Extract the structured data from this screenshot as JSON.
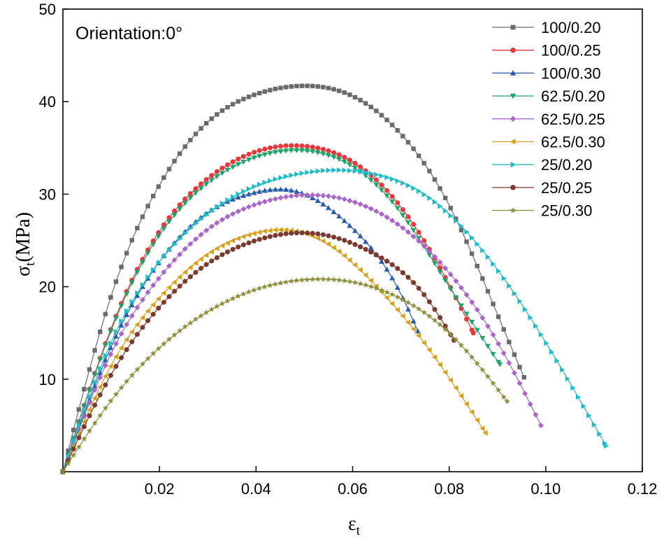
{
  "chart_data": {
    "type": "line",
    "annotation": "Orientation:0°",
    "xlabel": "ε",
    "xlabel_sub": "t",
    "ylabel_prefix": "σ",
    "ylabel_sub": "t",
    "ylabel_suffix": "(MPa)",
    "xlim": [
      0,
      0.12
    ],
    "ylim": [
      0,
      50
    ],
    "xticks": [
      0.02,
      0.04,
      0.06,
      0.08,
      0.1,
      0.12
    ],
    "xtick_labels": [
      "0.02",
      "0.04",
      "0.06",
      "0.08",
      "0.10",
      "0.12"
    ],
    "yticks": [
      10,
      20,
      30,
      40,
      50
    ],
    "ytick_labels": [
      "10",
      "20",
      "30",
      "40",
      "50"
    ],
    "legend_position": "top-right",
    "series": [
      {
        "name": "100/0.20",
        "color": "#6a6a6a",
        "marker": "square",
        "x": [
          0,
          0.01,
          0.02,
          0.03,
          0.04,
          0.051,
          0.06,
          0.07,
          0.08,
          0.09,
          0.0955
        ],
        "y": [
          0,
          19.0,
          31.0,
          37.8,
          40.8,
          41.7,
          40.6,
          36.5,
          28.8,
          17.0,
          10.2
        ]
      },
      {
        "name": "100/0.25",
        "color": "#e8383b",
        "marker": "circle",
        "x": [
          0,
          0.01,
          0.02,
          0.03,
          0.04,
          0.05,
          0.06,
          0.07,
          0.08,
          0.085
        ],
        "y": [
          0,
          15.5,
          26.0,
          31.7,
          34.6,
          35.2,
          33.5,
          28.6,
          20.2,
          15.0
        ]
      },
      {
        "name": "100/0.30",
        "color": "#2a5caa",
        "marker": "triangle-up",
        "x": [
          0,
          0.01,
          0.02,
          0.03,
          0.04,
          0.046,
          0.05,
          0.06,
          0.07,
          0.0735
        ],
        "y": [
          0,
          13.5,
          22.7,
          28.0,
          30.2,
          30.5,
          30.0,
          26.3,
          19.2,
          15.2
        ]
      },
      {
        "name": "62.5/0.20",
        "color": "#20a36a",
        "marker": "triangle-down",
        "x": [
          0,
          0.01,
          0.02,
          0.03,
          0.04,
          0.05,
          0.06,
          0.07,
          0.08,
          0.0905
        ],
        "y": [
          0,
          15.3,
          25.6,
          31.2,
          34.0,
          34.7,
          33.0,
          28.0,
          20.0,
          11.6
        ]
      },
      {
        "name": "62.5/0.25",
        "color": "#a965c8",
        "marker": "diamond",
        "x": [
          0,
          0.01,
          0.02,
          0.03,
          0.04,
          0.05,
          0.06,
          0.07,
          0.08,
          0.09,
          0.099
        ],
        "y": [
          0,
          12.8,
          21.0,
          26.2,
          28.9,
          29.9,
          29.2,
          26.5,
          21.5,
          14.0,
          5.0
        ]
      },
      {
        "name": "62.5/0.30",
        "color": "#d6a019",
        "marker": "triangle-left",
        "x": [
          0,
          0.01,
          0.02,
          0.03,
          0.04,
          0.047,
          0.055,
          0.065,
          0.075,
          0.0875
        ],
        "y": [
          0,
          11.5,
          18.8,
          23.5,
          25.8,
          26.1,
          24.6,
          20.0,
          13.8,
          4.2
        ]
      },
      {
        "name": "25/0.20",
        "color": "#1fbcc6",
        "marker": "triangle-right",
        "x": [
          0,
          0.01,
          0.02,
          0.03,
          0.04,
          0.05,
          0.057,
          0.065,
          0.075,
          0.085,
          0.095,
          0.105,
          0.1125
        ],
        "y": [
          0,
          14.0,
          22.7,
          27.9,
          30.9,
          32.3,
          32.6,
          32.1,
          29.9,
          25.1,
          18.1,
          9.6,
          2.8
        ]
      },
      {
        "name": "25/0.25",
        "color": "#7a3a30",
        "marker": "circle",
        "x": [
          0,
          0.01,
          0.02,
          0.03,
          0.04,
          0.048,
          0.055,
          0.065,
          0.075,
          0.081
        ],
        "y": [
          0,
          10.5,
          17.8,
          22.5,
          25.0,
          25.8,
          25.5,
          23.4,
          19.0,
          14.2
        ]
      },
      {
        "name": "25/0.30",
        "color": "#8e8e3a",
        "marker": "star",
        "x": [
          0,
          0.01,
          0.02,
          0.03,
          0.04,
          0.052,
          0.06,
          0.07,
          0.08,
          0.092
        ],
        "y": [
          0,
          7.7,
          13.4,
          17.3,
          19.7,
          20.8,
          20.5,
          18.7,
          15.0,
          7.6
        ]
      }
    ]
  }
}
